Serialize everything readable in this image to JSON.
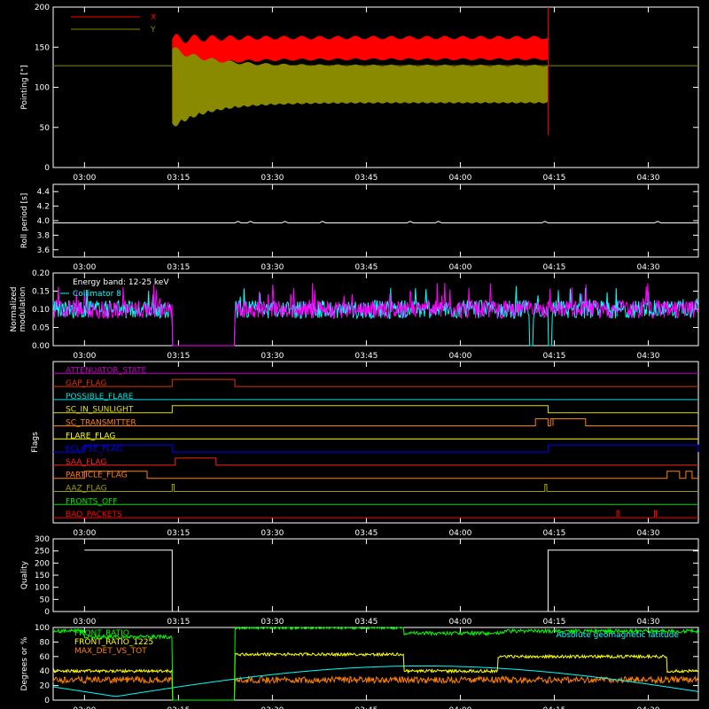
{
  "time_ticks": [
    "03:00",
    "03:15",
    "03:30",
    "03:45",
    "04:00",
    "04:15",
    "04:30"
  ],
  "chart_data": [
    {
      "type": "line",
      "ylabel": "Pointing [\"]",
      "ylim": [
        0,
        200
      ],
      "yticks": [
        "0",
        "50",
        "100",
        "150",
        "200"
      ],
      "series": [
        {
          "name": "X",
          "color": "#ff0000"
        },
        {
          "name": "Y",
          "color": "#8a8a00"
        }
      ],
      "reference_line": 127,
      "data_start": "03:14",
      "data_end": "04:14",
      "x_env": {
        "start": [
          120,
          160
        ],
        "settled": [
          135,
          162
        ]
      },
      "y_env": {
        "start": [
          55,
          148
        ],
        "settled": [
          82,
          127
        ]
      }
    },
    {
      "type": "line",
      "ylabel": "Roll period [s]",
      "ylim": [
        3.5,
        4.5
      ],
      "yticks": [
        "3.6",
        "3.8",
        "4.0",
        "4.2",
        "4.4"
      ],
      "series": [
        {
          "color": "#ffffff",
          "value": 3.97
        }
      ]
    },
    {
      "type": "line",
      "ylabel": "Normalized modulation",
      "ylim": [
        0,
        0.2
      ],
      "yticks": [
        "0.00",
        "0.05",
        "0.10",
        "0.15",
        "0.20"
      ],
      "annotations": [
        "Energy band: 12-25 keV",
        "Collimator 8"
      ],
      "series": [
        {
          "name": "Collimator 8",
          "color": "#00ffff"
        },
        {
          "color": "#ff00ff"
        }
      ],
      "gap": [
        "03:14",
        "03:24"
      ],
      "cyan_gaps": [
        [
          "04:11",
          "04:11.6"
        ],
        [
          "04:14",
          "04:14.6"
        ]
      ],
      "mean": 0.1
    },
    {
      "type": "line",
      "ylabel": "Flags",
      "flags": [
        {
          "name": "ATTENUATOR_STATE",
          "color": "#c000c0",
          "segments": []
        },
        {
          "name": "GAP_FLAG",
          "color": "#e03000",
          "segments": [
            [
              "03:14",
              "03:24"
            ]
          ]
        },
        {
          "name": "POSSIBLE_FLARE",
          "color": "#00e0e0",
          "segments": []
        },
        {
          "name": "SC_IN_SUNLIGHT",
          "color": "#e0e000",
          "segments": [
            [
              "03:14",
              "04:14"
            ]
          ]
        },
        {
          "name": "SC_TRANSMITTER",
          "color": "#ff8000",
          "segments": [
            [
              "04:12",
              "04:14"
            ],
            [
              "04:14.4",
              "04:14.8"
            ],
            [
              "04:14.8",
              "04:20"
            ]
          ]
        },
        {
          "name": "FLARE_FLAG",
          "color": "#ffff00",
          "segments": []
        },
        {
          "name": "ECLIPSE_FLAG",
          "color": "#0000ff",
          "segments": [
            [
              "03:00",
              "03:14"
            ],
            [
              "04:14",
              "04:38"
            ]
          ]
        },
        {
          "name": "SAA_FLAG",
          "color": "#ff2020",
          "segments": [
            [
              "03:14.5",
              "03:21"
            ]
          ]
        },
        {
          "name": "PARTICLE_FLAG",
          "color": "#ff8000",
          "segments": [
            [
              "03:00",
              "03:10"
            ],
            [
              "04:33",
              "04:35"
            ],
            [
              "04:36",
              "04:37"
            ]
          ]
        },
        {
          "name": "AAZ_FLAG",
          "color": "#a0a000",
          "segments": [
            [
              "03:14",
              "03:14.3"
            ],
            [
              "04:13.5",
              "04:13.8"
            ]
          ]
        },
        {
          "name": "FRONTS_OFF",
          "color": "#00e000",
          "segments": []
        },
        {
          "name": "BAD_PACKETS",
          "color": "#ff0000",
          "segments": [
            [
              "04:25",
              "04:25.3"
            ],
            [
              "04:31",
              "04:31.3"
            ]
          ]
        }
      ]
    },
    {
      "type": "line",
      "ylabel": "Quality",
      "ylim": [
        0,
        300
      ],
      "yticks": [
        "0",
        "50",
        "100",
        "150",
        "200",
        "250",
        "300"
      ],
      "series": [
        {
          "color": "#ffffff"
        }
      ],
      "levels": [
        {
          "from": "03:00",
          "to": "03:14",
          "value": 253
        },
        {
          "from": "03:14",
          "to": "04:14",
          "value": 0
        },
        {
          "from": "04:14",
          "to": "04:38",
          "value": 253
        }
      ]
    },
    {
      "type": "line",
      "ylabel": "Degrees or %",
      "ylim": [
        0,
        100
      ],
      "yticks": [
        "0",
        "20",
        "40",
        "60",
        "80",
        "100"
      ],
      "series": [
        {
          "name": "FRONT_RATIO",
          "color": "#00ff00"
        },
        {
          "name": "FRONT_RATIO_1225",
          "color": "#ffff00"
        },
        {
          "name": "MAX_DET_VS_TOT",
          "color": "#ff8000"
        },
        {
          "name": "Absolute geomagnetic latitude",
          "color": "#00ffff"
        }
      ],
      "gap": [
        "03:14",
        "03:24"
      ],
      "front_ratio_levels": [
        {
          "from": "03:00",
          "to": "03:14",
          "value": 87
        },
        {
          "from": "03:24",
          "to": "03:51",
          "value": 100
        },
        {
          "from": "03:51",
          "to": "04:07",
          "value": 92
        },
        {
          "from": "04:07",
          "to": "04:38",
          "value": 95
        }
      ],
      "front_1225_levels": [
        {
          "from": "03:00",
          "to": "03:14",
          "value": 40
        },
        {
          "from": "03:24",
          "to": "03:51",
          "value": 63
        },
        {
          "from": "03:51",
          "to": "04:06",
          "value": 40
        },
        {
          "from": "04:06",
          "to": "04:33",
          "value": 60
        },
        {
          "from": "04:33",
          "to": "04:38",
          "value": 40
        }
      ],
      "max_det_mean": 28,
      "latitude_min": 5,
      "latitude_max": 47,
      "latitude_period_min": 98,
      "latitude_min_at": "03:05"
    }
  ]
}
